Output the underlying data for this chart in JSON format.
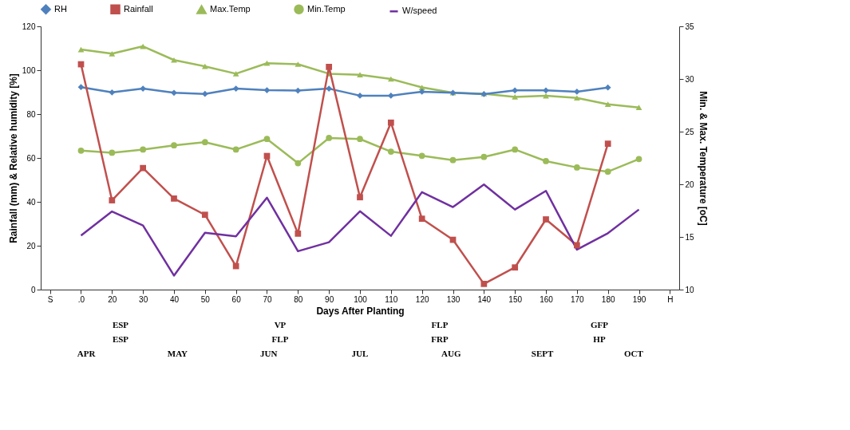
{
  "chart_data": {
    "type": "line",
    "xlabel": "Days After Planting",
    "ylabel": "Rainfall (mm) & Relative humidity [%]",
    "y2label": "Min. & Max. Temperature [oC]",
    "categories": [
      "S",
      ".0",
      "20",
      "30",
      "40",
      "50",
      "60",
      "70",
      "80",
      "90",
      "100",
      "110",
      "120",
      "130",
      "140",
      "150",
      "160",
      "170",
      "180",
      "190",
      "H"
    ],
    "series": [
      {
        "name": "RH",
        "color": "#4f81bd",
        "marker": "diamond",
        "values": [
          null,
          92.3,
          89.9,
          91.6,
          89.7,
          89.2,
          91.6,
          90.9,
          90.7,
          91.6,
          88.4,
          88.4,
          90.2,
          89.7,
          89.1,
          90.8,
          90.8,
          90.2,
          92.1,
          null,
          null
        ]
      },
      {
        "name": "Rainfall",
        "color": "#c0504d",
        "marker": "square",
        "values": [
          null,
          102.7,
          40.7,
          55.4,
          41.5,
          34.1,
          10.7,
          60.9,
          25.5,
          101.5,
          42.1,
          76.1,
          32.3,
          22.7,
          2.6,
          10.1,
          32.0,
          20.2,
          66.5,
          null,
          null
        ]
      },
      {
        "name": "Max.Temp",
        "color": "#9bbb59",
        "marker": "triangle",
        "axis": "y2",
        "values": [
          null,
          32.8,
          32.4,
          33.1,
          31.8,
          31.2,
          30.5,
          31.5,
          31.4,
          30.5,
          30.4,
          30.0,
          29.2,
          28.7,
          28.6,
          28.3,
          28.4,
          28.2,
          27.6,
          27.3,
          null
        ]
      },
      {
        "name": "Min.Temp",
        "color": "#9bbb59",
        "marker": "circle",
        "axis": "y2",
        "values": [
          null,
          23.2,
          23.0,
          23.3,
          23.7,
          24.0,
          23.3,
          24.3,
          22.0,
          24.4,
          24.3,
          23.1,
          22.7,
          22.3,
          22.6,
          23.3,
          22.2,
          21.6,
          21.2,
          22.4,
          null
        ]
      },
      {
        "name": "W/speed",
        "color": "#7030a0",
        "marker": "none",
        "values": [
          null,
          24.6,
          35.6,
          29.2,
          6.4,
          25.9,
          24.3,
          41.9,
          17.5,
          21.6,
          35.7,
          24.5,
          44.4,
          37.6,
          47.9,
          36.5,
          45.0,
          18.2,
          25.7,
          36.5,
          null
        ]
      }
    ],
    "ylim": [
      0,
      120
    ],
    "yticks": [
      0,
      20,
      40,
      60,
      80,
      100,
      120
    ],
    "y2lim": [
      10,
      35
    ],
    "y2ticks": [
      10,
      15,
      20,
      25,
      30,
      35
    ],
    "grid": false,
    "legend": "top",
    "annotations": [
      "ESP",
      "VP",
      "FLP",
      "GFP",
      "ESP",
      "FLP",
      "FRP",
      "HP",
      "APR",
      "MAY",
      "JUN",
      "JUL",
      "AUG",
      "SEPT",
      "OCT"
    ]
  }
}
